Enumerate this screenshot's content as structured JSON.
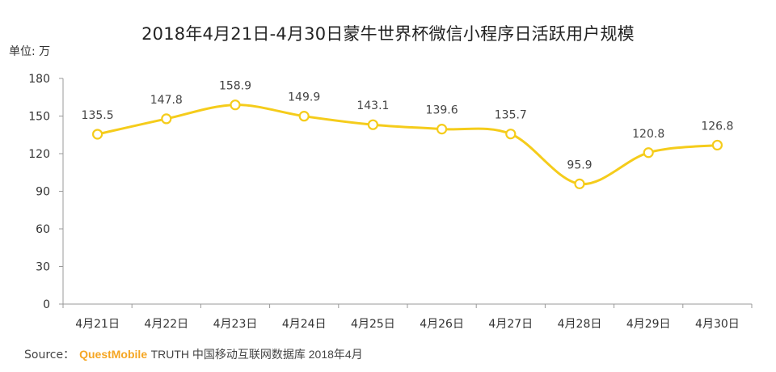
{
  "title": "2018年4月21日-4月30日蒙牛世界杯微信小程序日活跃用户规模",
  "unit_label": "单位: 万",
  "source": {
    "prefix": "Source：",
    "brand": "QuestMobile",
    "rest": "TRUTH 中国移动互联网数据库 2018年4月"
  },
  "colors": {
    "line": "#f5cc1b",
    "marker_fill": "#ffffff",
    "axis": "#999999"
  },
  "chart_data": {
    "type": "line",
    "title": "2018年4月21日-4月30日蒙牛世界杯微信小程序日活跃用户规模",
    "xlabel": "",
    "ylabel": "单位: 万",
    "categories": [
      "4月21日",
      "4月22日",
      "4月23日",
      "4月24日",
      "4月25日",
      "4月26日",
      "4月27日",
      "4月28日",
      "4月29日",
      "4月30日"
    ],
    "values": [
      135.5,
      147.8,
      158.9,
      149.9,
      143.1,
      139.6,
      135.7,
      95.9,
      120.8,
      126.8
    ],
    "labels": [
      "135.5",
      "147.8",
      "158.9",
      "149.9",
      "143.1",
      "139.6",
      "135.7",
      "95.9",
      "120.8",
      "126.8"
    ],
    "ylim": [
      0,
      180
    ],
    "yticks": [
      0,
      30,
      60,
      90,
      120,
      150,
      180
    ],
    "grid": false,
    "legend": "none",
    "smooth": true
  }
}
